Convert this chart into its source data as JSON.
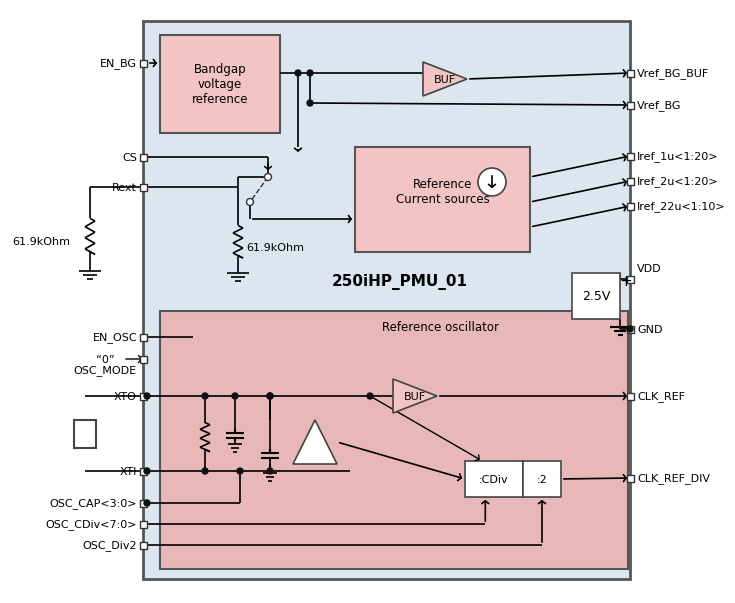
{
  "bg_main": "#dce6f1",
  "bg_pink": "#f2c4c4",
  "bg_osc": "#e8b8b8",
  "bg_white": "#ffffff",
  "border_dark": "#444444",
  "border_med": "#666666",
  "line_color": "#000000",
  "pmu_label": "250iHP_PMU_01",
  "bandgap_label": "Bandgap\nvoltage\nreference",
  "refcur_label": "Reference\nCurrent sources",
  "osc_label": "Reference oscillator",
  "buf_label": "BUF",
  "buf2_label": "BUF",
  "cdiv_label": ":CDiv",
  "div2_label": ":2",
  "voltage_label": "2.5V",
  "resistor_label1": "61.9kOhm",
  "resistor_label2": "61.9kOhm",
  "vdd_label": "VDD",
  "gnd_label": "GND",
  "pins_left_top": [
    "EN_BG",
    "CS",
    "Rext"
  ],
  "pins_left_bot": [
    "EN_OSC",
    "OSC_MODE",
    "XTO",
    "XTI",
    "OSC_CAP<3:0>",
    "OSC_CDiv<7:0>",
    "OSC_Div2"
  ],
  "pins_right_top": [
    "Vref_BG_BUF",
    "Vref_BG",
    "Iref_1u<1:20>",
    "Iref_2u<1:20>",
    "Iref_22u<1:10>"
  ],
  "pins_right_bot": [
    "CLK_REF",
    "CLK_REF_DIV"
  ],
  "zero_label": "“0”"
}
